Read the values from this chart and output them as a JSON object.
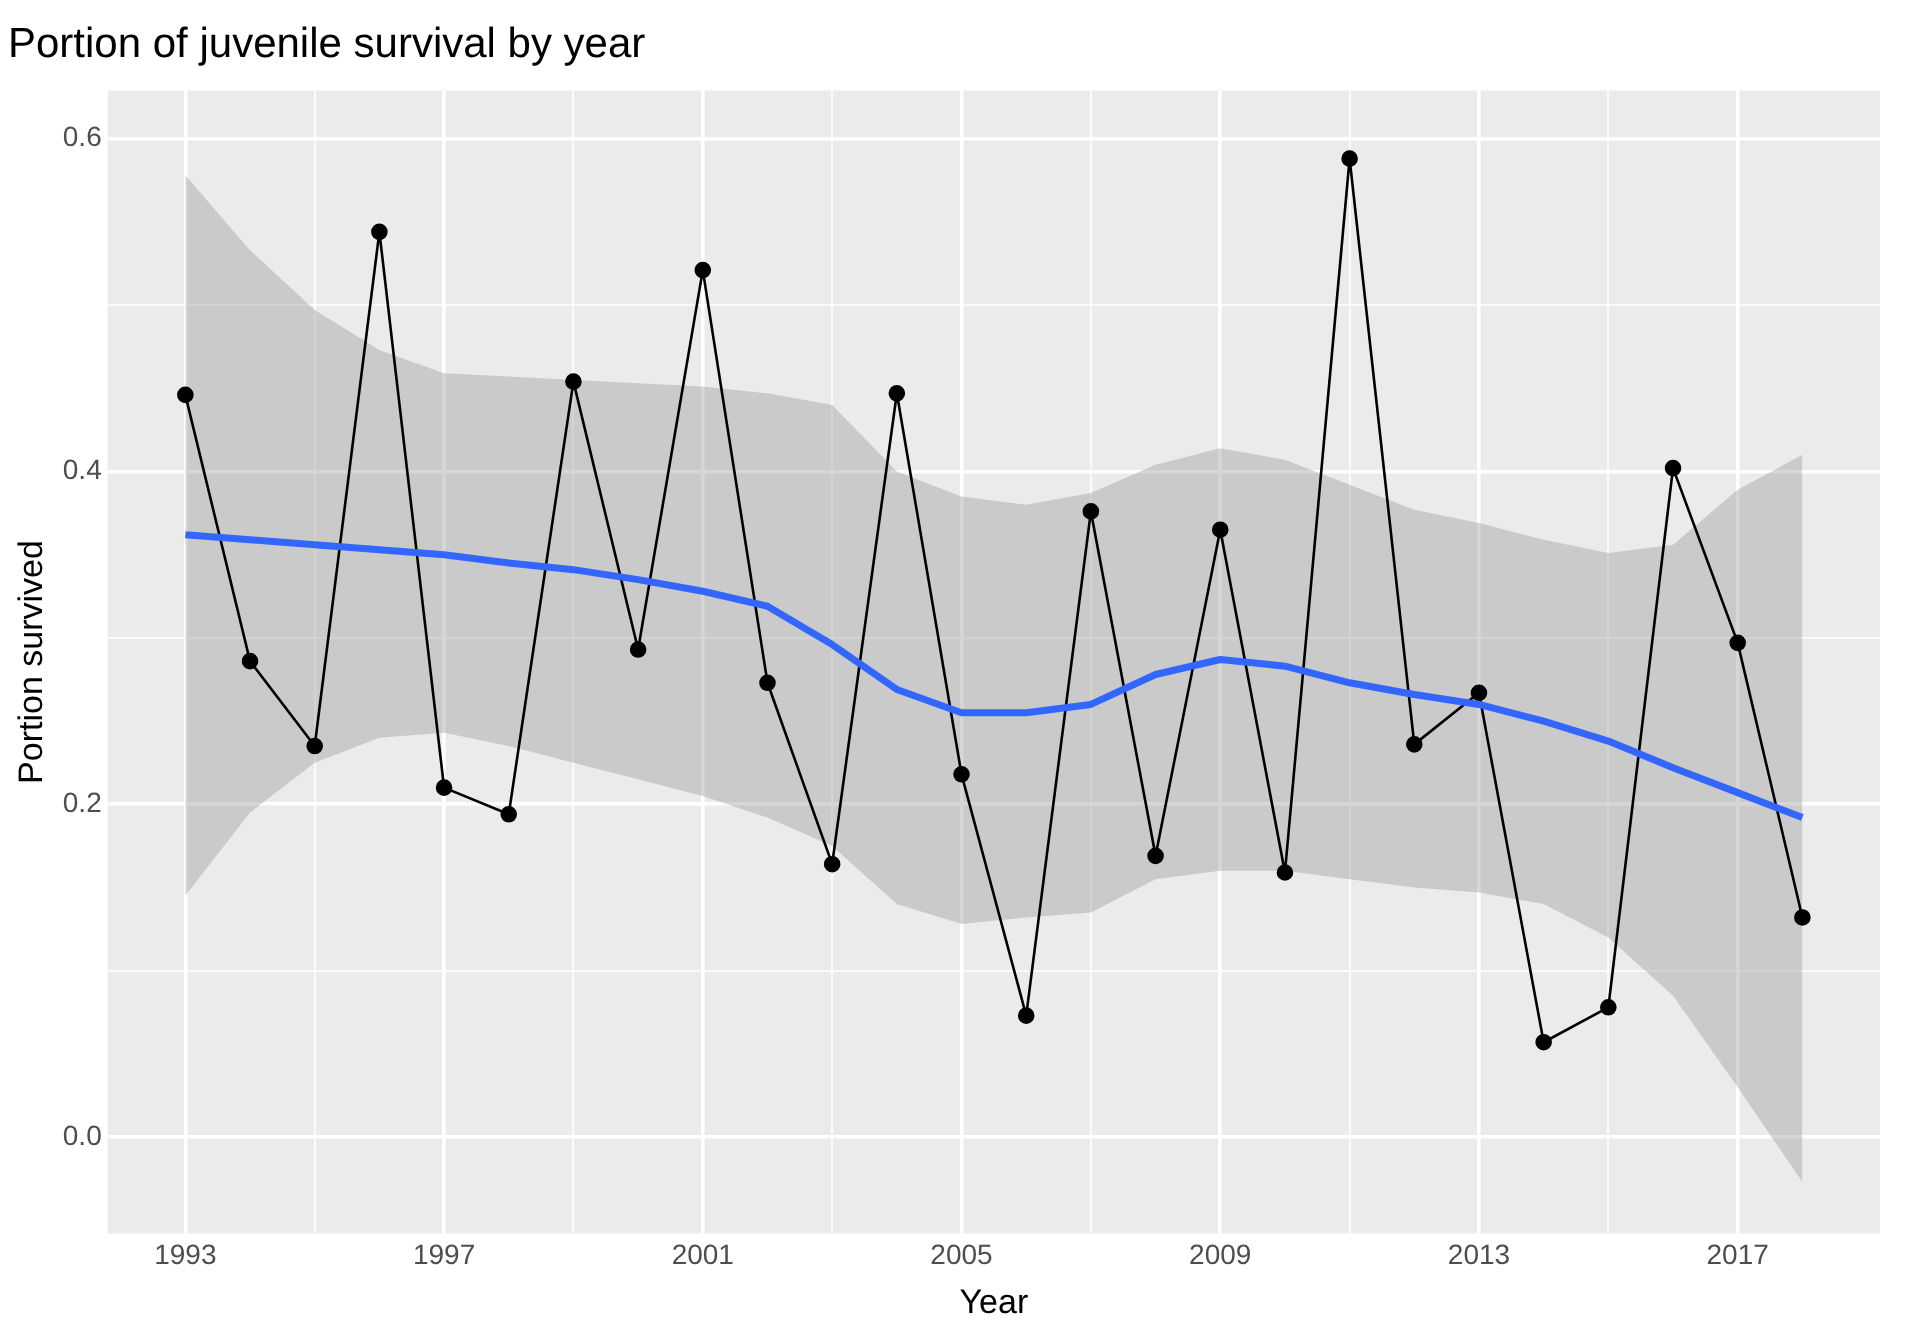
{
  "chart_data": {
    "type": "line",
    "title": "Portion of juvenile survival by year",
    "xlabel": "Year",
    "ylabel": "Portion survived",
    "xlim": [
      1991.8,
      2019.2
    ],
    "ylim": [
      -0.058,
      0.629
    ],
    "xticks": [
      1993,
      {
        "value": 1995,
        "label": null
      },
      1997,
      {
        "value": 1999,
        "label": null
      },
      2001,
      {
        "value": 2003,
        "label": null
      },
      2005,
      {
        "value": 2007,
        "label": null
      },
      2009,
      {
        "value": 2011,
        "label": null
      },
      2013,
      {
        "value": 2015,
        "label": null
      },
      2017
    ],
    "yticks": [
      {
        "value": 0,
        "label": "0.0"
      },
      {
        "value": 0.1,
        "label": null
      },
      0.2,
      {
        "value": 0.3,
        "label": null
      },
      0.4,
      {
        "value": 0.5,
        "label": null
      },
      0.6
    ],
    "grid": true,
    "x": [
      1993,
      1994,
      1995,
      1996,
      1997,
      1998,
      1999,
      2000,
      2001,
      2002,
      2003,
      2004,
      2005,
      2006,
      2007,
      2008,
      2009,
      2010,
      2011,
      2012,
      2013,
      2014,
      2015,
      2016,
      2017,
      2018
    ],
    "series": [
      {
        "color": "#000000",
        "marker": "circle",
        "values": [
          0.446,
          0.286,
          0.235,
          0.544,
          0.21,
          0.194,
          0.454,
          0.293,
          0.521,
          0.273,
          0.164,
          0.447,
          0.218,
          0.073,
          0.376,
          0.169,
          0.365,
          0.159,
          0.588,
          0.236,
          0.267,
          0.057,
          0.078,
          0.402,
          0.297,
          0.132
        ]
      },
      {
        "color": "#3366ff",
        "marker": "none",
        "values": [
          0.362,
          0.359,
          0.356,
          0.353,
          0.35,
          0.345,
          0.341,
          0.335,
          0.328,
          0.319,
          0.296,
          0.269,
          0.255,
          0.255,
          0.26,
          0.278,
          0.287,
          0.283,
          0.273,
          0.266,
          0.26,
          0.25,
          0.238,
          0.222,
          0.207,
          0.192
        ],
        "lower": [
          0.145,
          0.195,
          0.225,
          0.24,
          0.243,
          0.235,
          0.225,
          0.215,
          0.205,
          0.192,
          0.175,
          0.14,
          0.128,
          0.132,
          0.135,
          0.155,
          0.16,
          0.16,
          0.155,
          0.15,
          0.147,
          0.14,
          0.12,
          0.085,
          0.03,
          -0.027
        ],
        "upper": [
          0.578,
          0.533,
          0.497,
          0.473,
          0.459,
          0.457,
          0.455,
          0.453,
          0.451,
          0.447,
          0.44,
          0.4,
          0.385,
          0.38,
          0.387,
          0.404,
          0.414,
          0.407,
          0.392,
          0.377,
          0.369,
          0.359,
          0.351,
          0.356,
          0.389,
          0.41
        ]
      }
    ]
  }
}
